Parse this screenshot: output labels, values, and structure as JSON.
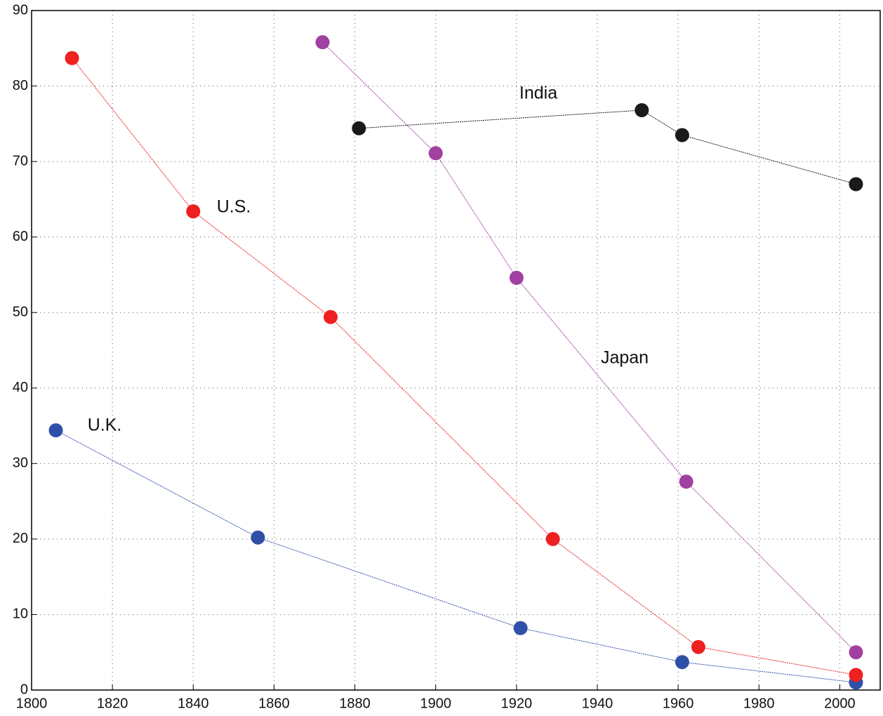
{
  "chart_data": {
    "type": "line",
    "series": [
      {
        "name": "U.K.",
        "color": "#3050a8",
        "x": [
          1806,
          1856,
          1921,
          1961,
          2004
        ],
        "values": [
          34.4,
          20.2,
          8.2,
          3.7,
          1.0
        ]
      },
      {
        "name": "U.S.",
        "color": "#ee2020",
        "x": [
          1810,
          1840,
          1874,
          1929,
          1965,
          2004
        ],
        "values": [
          83.7,
          63.4,
          49.4,
          20.0,
          5.7,
          2.0
        ]
      },
      {
        "name": "Japan",
        "color": "#a040a0",
        "x": [
          1872,
          1900,
          1920,
          1962,
          2004
        ],
        "values": [
          85.8,
          71.1,
          54.6,
          27.6,
          5.0
        ]
      },
      {
        "name": "India",
        "color": "#1a1a1a",
        "x": [
          1881,
          1951,
          1961,
          2004
        ],
        "values": [
          74.4,
          76.8,
          73.5,
          67.0
        ]
      }
    ],
    "xlim": [
      1800,
      2010
    ],
    "xticks": [
      1800,
      1820,
      1840,
      1860,
      1880,
      1900,
      1920,
      1940,
      1960,
      1980,
      2000
    ],
    "ylim": [
      0,
      90
    ],
    "yticks": [
      0,
      10,
      20,
      30,
      40,
      50,
      60,
      70,
      80,
      90
    ],
    "grid": true
  }
}
